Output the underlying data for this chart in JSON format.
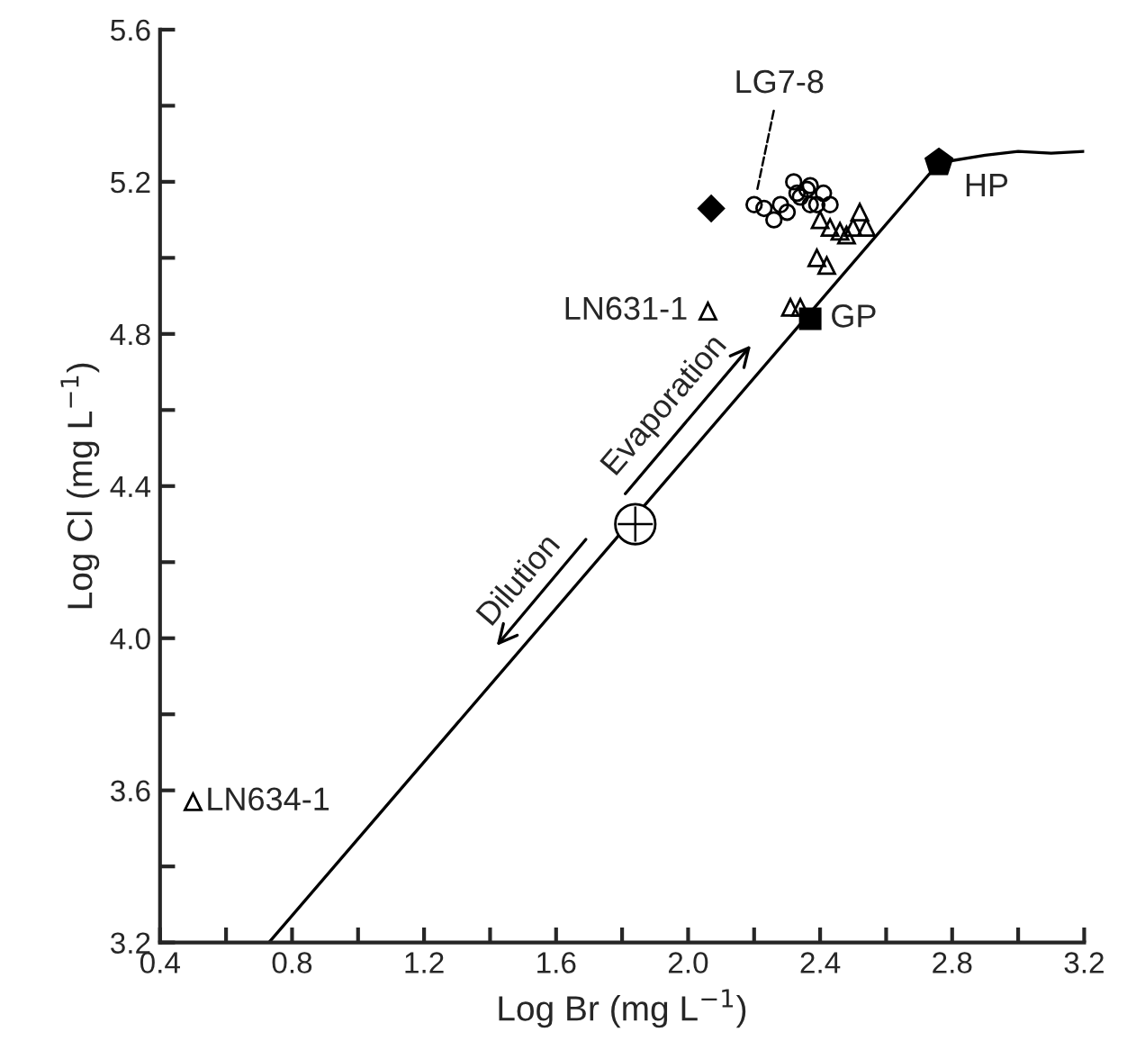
{
  "chart_data": {
    "type": "scatter",
    "xlabel": "Log Br (mg L$^{−1}$)",
    "ylabel": "Log Cl (mg L$^{−1}$)",
    "xlim": [
      0.4,
      3.2
    ],
    "ylim": [
      3.2,
      5.6
    ],
    "xticks": [
      0.4,
      {
        "value": 0.6,
        "label": null
      },
      0.8,
      {
        "value": 1.0,
        "label": null
      },
      1.2,
      {
        "value": 1.4,
        "label": null
      },
      1.6,
      {
        "value": 1.8,
        "label": null
      },
      {
        "value": 2.0,
        "label": "2.0"
      },
      {
        "value": 2.2,
        "label": null
      },
      2.4,
      {
        "value": 2.6,
        "label": null
      },
      2.8,
      {
        "value": 3.0,
        "label": null
      },
      3.2
    ],
    "yticks": [
      3.2,
      {
        "value": 3.4,
        "label": null
      },
      3.6,
      {
        "value": 3.8,
        "label": null
      },
      {
        "value": 4.0,
        "label": "4.0"
      },
      {
        "value": 4.2,
        "label": null
      },
      4.4,
      {
        "value": 4.6,
        "label": null
      },
      4.8,
      {
        "value": 5.0,
        "label": null
      },
      5.2,
      {
        "value": 5.4,
        "label": null
      },
      5.6
    ],
    "grid": false,
    "legend": false,
    "series": [
      {
        "type": "line",
        "color": "#000000",
        "marker": "none",
        "line_style": "solid",
        "x": [
          0.73,
          2.76,
          2.9,
          3.0,
          3.1,
          3.2
        ],
        "values": [
          3.2,
          5.25,
          5.27,
          5.28,
          5.275,
          5.28
        ]
      },
      {
        "color": "#000000",
        "marker": "circle",
        "x": [
          2.2,
          2.23,
          2.26,
          2.28,
          2.3,
          2.32,
          2.34,
          2.36,
          2.37,
          2.39,
          2.41,
          2.43,
          2.33,
          2.37
        ],
        "values": [
          5.14,
          5.13,
          5.1,
          5.14,
          5.12,
          5.2,
          5.16,
          5.18,
          5.19,
          5.14,
          5.17,
          5.14,
          5.17,
          5.14
        ]
      },
      {
        "color": "#000000",
        "marker": "triangle",
        "x": [
          2.06,
          0.5,
          2.31,
          2.34,
          2.39,
          2.42,
          2.4,
          2.43,
          2.48,
          2.52,
          2.5,
          2.54,
          2.46
        ],
        "values": [
          4.86,
          3.57,
          4.87,
          4.87,
          5.0,
          4.98,
          5.1,
          5.08,
          5.06,
          5.12,
          5.08,
          5.08,
          5.07
        ]
      },
      {
        "color": "#000000",
        "marker": "diamond",
        "x": [
          2.07
        ],
        "values": [
          5.13
        ]
      },
      {
        "color": "#000000",
        "marker": "square",
        "x": [
          2.37
        ],
        "values": [
          4.84
        ]
      },
      {
        "color": "#000000",
        "x": [
          2.76
        ],
        "values": [
          5.25
        ]
      },
      {
        "color": "#000000",
        "marker": "circle",
        "x": [
          1.84
        ],
        "values": [
          4.3
        ]
      }
    ],
    "annotations": [
      {
        "text": "LG7-8",
        "x": 2.2,
        "y": 5.14
      },
      {
        "text": "HP",
        "x": 2.76,
        "y": 5.25
      },
      {
        "text": "GP",
        "x": 2.37,
        "y": 4.84
      },
      {
        "text": "LN631-1",
        "x": 2.06,
        "y": 4.86
      },
      {
        "text": "LN634-1",
        "x": 0.5,
        "y": 3.57
      },
      "Evaporation",
      "Dilution"
    ]
  }
}
